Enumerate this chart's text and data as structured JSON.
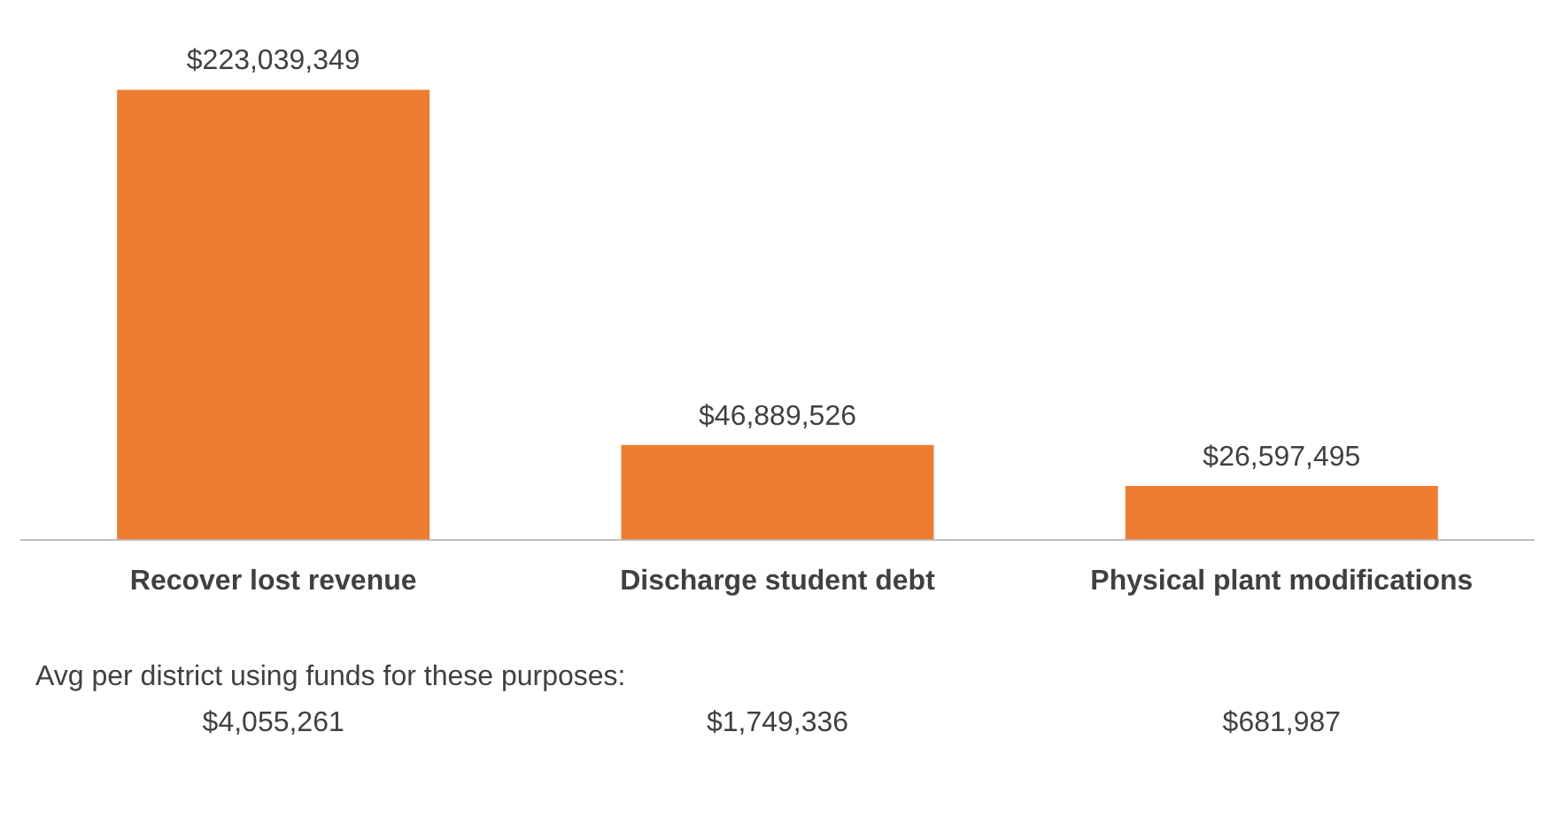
{
  "chart_data": {
    "type": "bar",
    "categories": [
      "Recover lost revenue",
      "Discharge student debt",
      "Physical plant modifications"
    ],
    "values": [
      223039349,
      46889526,
      26597495
    ],
    "value_labels": [
      "$223,039,349",
      "$46,889,526",
      "$26,597,495"
    ],
    "color": "#ed7d31",
    "annotations": [
      "Avg per district using funds for these purposes:",
      "$4,055,261",
      "$1,749,336",
      "$681,987"
    ]
  }
}
